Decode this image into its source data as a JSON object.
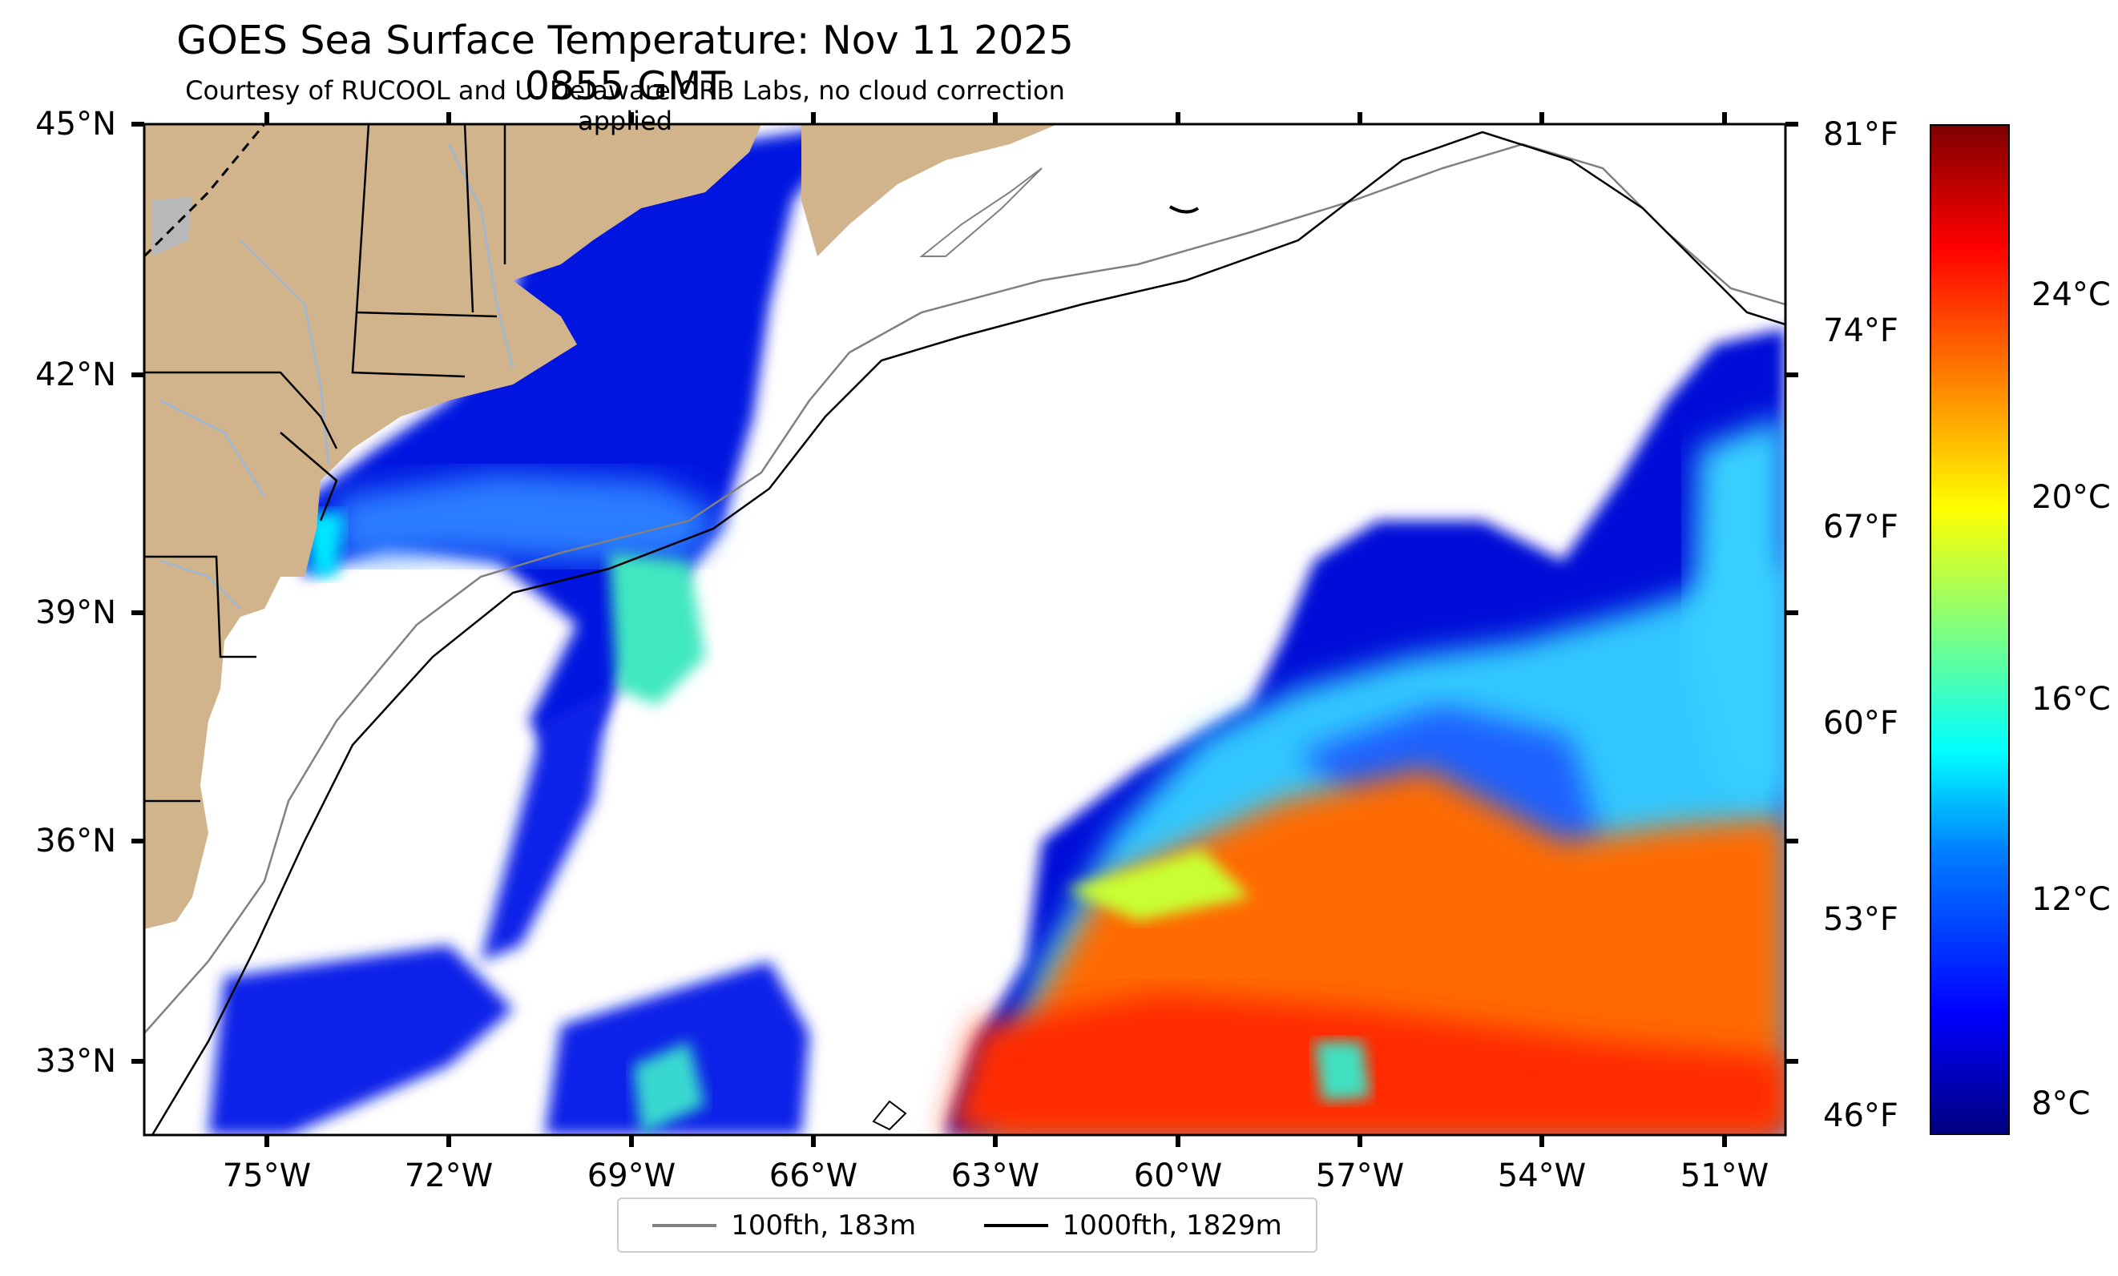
{
  "title": "GOES Sea Surface Temperature: Nov 11 2025 0855 GMT",
  "subtitle": "Courtesy of RUCOOL and U. Delaware ORB Labs, no cloud correction applied",
  "map": {
    "lat_ticks": [
      "45°N",
      "42°N",
      "39°N",
      "36°N",
      "33°N"
    ],
    "lon_ticks": [
      "75°W",
      "72°W",
      "69°W",
      "66°W",
      "63°W",
      "60°W",
      "57°W",
      "54°W",
      "51°W"
    ],
    "land_color": "#d2b48c",
    "ocean_no_data_color": "#ffffff",
    "river_color": "#9ab8d8",
    "lake_color": "#b8b8b8"
  },
  "legend": {
    "items": [
      {
        "label": "100fth, 183m",
        "color": "#808080"
      },
      {
        "label": "1000fth, 1829m",
        "color": "#000000"
      }
    ]
  },
  "colorbar": {
    "fahrenheit_ticks": [
      "81°F",
      "74°F",
      "67°F",
      "60°F",
      "53°F",
      "46°F"
    ],
    "celsius_ticks": [
      "24°C",
      "20°C",
      "16°C",
      "12°C",
      "8°C"
    ],
    "colormap": "jet"
  }
}
